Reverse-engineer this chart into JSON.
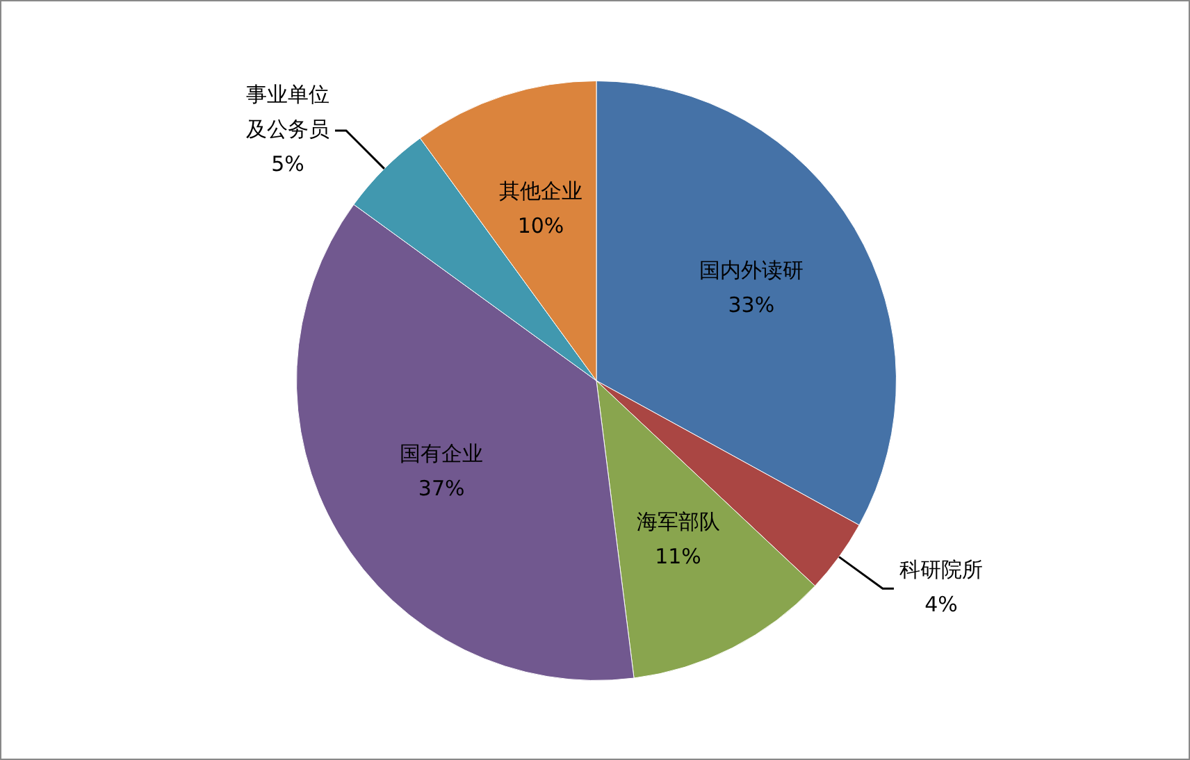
{
  "chart_data": {
    "type": "pie",
    "categories": [
      "国内外读研",
      "科研院所",
      "海军部队",
      "国有企业",
      "事业单位及公务员",
      "其他企业"
    ],
    "values": [
      33,
      4,
      11,
      37,
      5,
      10
    ],
    "value_labels": [
      "33%",
      "4%",
      "11%",
      "37%",
      "5%",
      "10%"
    ],
    "colors": [
      "#4572a7",
      "#aa4643",
      "#89a54e",
      "#71588f",
      "#4198af",
      "#db843d"
    ],
    "legend": false
  }
}
